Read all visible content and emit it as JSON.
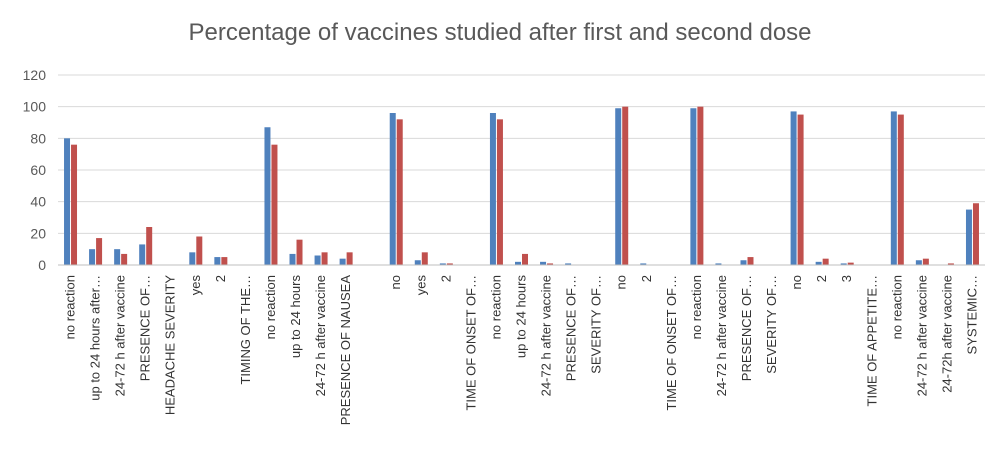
{
  "chart_data": {
    "type": "bar",
    "title": "Percentage of vaccines studied after first and second dose",
    "xlabel": "",
    "ylabel": "",
    "ylim": [
      0,
      120
    ],
    "yticks": [
      "0",
      "20",
      "40",
      "60",
      "80",
      "100",
      "120"
    ],
    "grid": true,
    "legend": "none",
    "colors": [
      "#4f81bd",
      "#c0504d"
    ],
    "categories": [
      "no reaction",
      "up to 24 hours after…",
      "24-72 h after vaccine",
      "PRESENCE OF…",
      "HEADACHE SEVERITY",
      "yes",
      "2",
      "TIMING OF THE…",
      "no reaction",
      "up to 24 hours",
      "24-72 h after vaccine",
      "PRESENCE OF NAUSEA",
      "",
      "no",
      "yes",
      "2",
      "TIME OF ONSET OF…",
      "no reaction",
      "up to 24 hours",
      "24-72 h after vaccine",
      "PRESENCE OF…",
      "SEVERITY OF…",
      "no",
      "2",
      "TIME OF ONSET OF…",
      "no reaction",
      "24-72 h after vaccine",
      "PRESENCE OF…",
      "SEVERITY OF…",
      "no",
      "2",
      "3",
      "TIME OF APPETITE…",
      "no reaction",
      "24-72 h after vaccine",
      "24-72h after vaccine",
      "SYSTEMIC…"
    ],
    "series": [
      {
        "values": [
          80,
          10,
          10,
          13,
          0,
          8,
          5,
          0,
          87,
          7,
          6,
          4,
          0,
          96,
          3,
          1,
          0,
          96,
          2,
          2,
          1,
          0,
          99,
          1,
          0,
          99,
          1,
          3,
          0,
          97,
          2,
          1,
          0,
          97,
          3,
          0,
          35
        ]
      },
      {
        "values": [
          76,
          17,
          7,
          24,
          0,
          18,
          5,
          0,
          76,
          16,
          8,
          8,
          0,
          92,
          8,
          1,
          0,
          92,
          7,
          1,
          0,
          0,
          100,
          0,
          0,
          100,
          0,
          5,
          0,
          95,
          4,
          1.5,
          0,
          95,
          4,
          1,
          39
        ]
      }
    ]
  }
}
